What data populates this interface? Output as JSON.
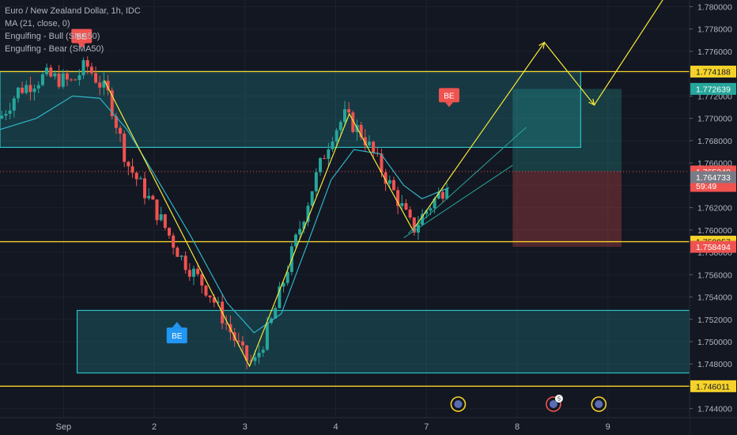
{
  "header": {
    "title": "Euro / New Zealand Dollar, 1h, IDC",
    "indicators": [
      "MA (21, close, 0)",
      "Engulfing - Bull (SMA50)",
      "Engulfing - Bear (SMA50)"
    ]
  },
  "colors": {
    "background": "#131722",
    "up": "#26a69a",
    "down": "#ef5350",
    "ma": "#2fb4c6",
    "drawing": "#f5e93a",
    "zone": "#29c2c7",
    "level": "#f5d22a",
    "bear_label": "#ef5350",
    "bull_label": "#2196f3"
  },
  "markers": [
    {
      "text": "BE",
      "kind": "bearish",
      "x_day": 0.2,
      "price": 1.7773
    },
    {
      "text": "BE",
      "kind": "bearish",
      "x_day": 4.25,
      "price": 1.772
    },
    {
      "text": "BE",
      "kind": "bullish",
      "x_day": 1.25,
      "price": 1.7507
    }
  ],
  "chart_data": {
    "type": "candlestick",
    "title": "Euro / New Zealand Dollar, 1h, IDC",
    "x_axis_labels": [
      "Sep",
      "2",
      "3",
      "4",
      "7",
      "8",
      "9"
    ],
    "x_label_days": [
      0,
      1,
      2,
      3,
      4,
      5,
      6
    ],
    "y_axis_ticks": [
      1.744,
      1.746,
      1.748,
      1.75,
      1.752,
      1.754,
      1.756,
      1.758,
      1.76,
      1.762,
      1.764,
      1.766,
      1.768,
      1.77,
      1.772,
      1.774,
      1.776,
      1.778,
      1.78
    ],
    "ylim": [
      1.7432,
      1.7806
    ],
    "xlim": [
      -0.7,
      6.9
    ],
    "price_badges": [
      {
        "value": "1.774188",
        "price": 1.774188,
        "bg": "#f5d22a",
        "fg": "#131722"
      },
      {
        "value": "1.772639",
        "price": 1.772639,
        "bg": "#26a69a",
        "fg": "#ffffff"
      },
      {
        "value": "1.765240",
        "price": 1.76524,
        "bg": "#ef5350",
        "fg": "#ffffff"
      },
      {
        "value": "59:49",
        "price": 1.76395,
        "bg": "#ef5350",
        "fg": "#ffffff"
      },
      {
        "value": "1.764733",
        "price": 1.764733,
        "bg": "#787b86",
        "fg": "#ffffff"
      },
      {
        "value": "1.758957",
        "price": 1.758957,
        "bg": "#f5d22a",
        "fg": "#131722"
      },
      {
        "value": "1.758494",
        "price": 1.758494,
        "bg": "#ef5350",
        "fg": "#ffffff"
      },
      {
        "value": "1.746011",
        "price": 1.746011,
        "bg": "#f5d22a",
        "fg": "#131722"
      }
    ],
    "horizontal_levels": [
      1.774188,
      1.758957,
      1.746011
    ],
    "current_price": 1.76524,
    "zones": [
      {
        "x0": -0.7,
        "x1": 5.7,
        "y0": 1.7674,
        "y1": 1.7742
      },
      {
        "x0": 0.15,
        "x1": 6.9,
        "y0": 1.7472,
        "y1": 1.7528
      }
    ],
    "position": {
      "x0": 4.95,
      "x1": 6.15,
      "entry": 1.76524,
      "target": 1.772639,
      "stop": 1.758494
    },
    "zigzag": [
      [
        0.45,
        1.7734
      ],
      [
        2.05,
        1.7478
      ],
      [
        3.15,
        1.7704
      ],
      [
        3.85,
        1.76
      ],
      [
        5.3,
        1.7768
      ],
      [
        5.85,
        1.7712
      ],
      [
        6.7,
        1.7818
      ]
    ],
    "channel_lines": [
      [
        [
          3.8,
          1.7597
        ],
        [
          5.1,
          1.7692
        ]
      ],
      [
        [
          3.75,
          1.7593
        ],
        [
          4.95,
          1.7658
        ]
      ]
    ],
    "candles_anchor_points": [
      [
        -0.7,
        1.77
      ],
      [
        -0.5,
        1.7725
      ],
      [
        -0.2,
        1.7738
      ],
      [
        0.1,
        1.7732
      ],
      [
        0.25,
        1.7748
      ],
      [
        0.5,
        1.772
      ],
      [
        0.7,
        1.766
      ],
      [
        1.0,
        1.762
      ],
      [
        1.3,
        1.7575
      ],
      [
        1.6,
        1.7545
      ],
      [
        1.8,
        1.7515
      ],
      [
        2.0,
        1.7485
      ],
      [
        2.1,
        1.748
      ],
      [
        2.3,
        1.752
      ],
      [
        2.5,
        1.7575
      ],
      [
        2.75,
        1.764
      ],
      [
        2.95,
        1.7685
      ],
      [
        3.1,
        1.7702
      ],
      [
        3.3,
        1.7685
      ],
      [
        3.5,
        1.7655
      ],
      [
        3.7,
        1.7625
      ],
      [
        3.85,
        1.76
      ],
      [
        4.0,
        1.7618
      ],
      [
        4.2,
        1.7638
      ],
      [
        4.25,
        1.7652
      ]
    ],
    "ma_points": [
      [
        -0.7,
        1.769
      ],
      [
        -0.3,
        1.77
      ],
      [
        0.1,
        1.772
      ],
      [
        0.4,
        1.7718
      ],
      [
        0.7,
        1.769
      ],
      [
        1.0,
        1.765
      ],
      [
        1.4,
        1.7595
      ],
      [
        1.8,
        1.7535
      ],
      [
        2.1,
        1.7508
      ],
      [
        2.4,
        1.7525
      ],
      [
        2.7,
        1.759
      ],
      [
        2.95,
        1.7645
      ],
      [
        3.2,
        1.7672
      ],
      [
        3.5,
        1.7668
      ],
      [
        3.75,
        1.764
      ],
      [
        3.95,
        1.7628
      ],
      [
        4.25,
        1.7638
      ]
    ],
    "event_icons": [
      {
        "x_day": 4.35,
        "badge": ""
      },
      {
        "x_day": 5.4,
        "badge": "5"
      },
      {
        "x_day": 5.9,
        "badge": ""
      }
    ]
  }
}
